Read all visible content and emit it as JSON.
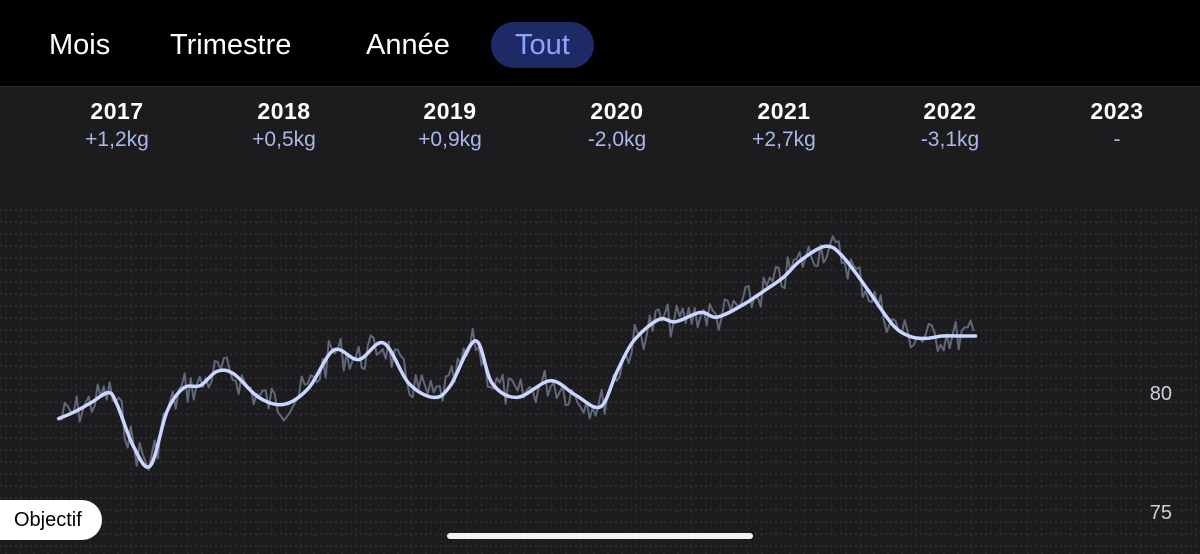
{
  "tabs": [
    {
      "label": "Mois",
      "active": false
    },
    {
      "label": "Trimestre",
      "active": false
    },
    {
      "label": "Année",
      "active": false
    },
    {
      "label": "Tout",
      "active": true
    }
  ],
  "years": [
    {
      "year": "2017",
      "delta": "+1,2kg"
    },
    {
      "year": "2018",
      "delta": "+0,5kg"
    },
    {
      "year": "2019",
      "delta": "+0,9kg"
    },
    {
      "year": "2020",
      "delta": "-2,0kg"
    },
    {
      "year": "2021",
      "delta": "+2,7kg"
    },
    {
      "year": "2022",
      "delta": "-3,1kg"
    },
    {
      "year": "2023",
      "delta": "-"
    }
  ],
  "y_axis": {
    "label_high": "80",
    "label_low": "75"
  },
  "objectif_label": "Objectif",
  "colors": {
    "background": "#1c1c1e",
    "topbar": "#000000",
    "active_tab_bg": "#1e2a66",
    "active_tab_text": "#8ea3ff",
    "delta_text": "#a9b7ea",
    "trend_line": "#c9d6ff",
    "raw_line": "#6d7488"
  },
  "chart_data": {
    "type": "line",
    "ylim": [
      74.5,
      87
    ],
    "yticks": [
      75,
      80
    ],
    "series": [
      {
        "role": "trend",
        "x": [
          2016.65,
          2016.75,
          2016.85,
          2016.95,
          2017.0,
          2017.1,
          2017.2,
          2017.3,
          2017.4,
          2017.5,
          2017.6,
          2017.7,
          2017.85,
          2018.0,
          2018.15,
          2018.3,
          2018.45,
          2018.6,
          2018.75,
          2018.9,
          2019.0,
          2019.15,
          2019.25,
          2019.4,
          2019.6,
          2019.75,
          2019.9,
          2020.0,
          2020.1,
          2020.25,
          2020.35,
          2020.5,
          2020.6,
          2020.75,
          2020.9,
          2021.0,
          2021.1,
          2021.25,
          2021.35,
          2021.5,
          2021.65,
          2021.75,
          2021.85,
          2021.95,
          2022.05,
          2022.15,
          2022.25,
          2022.35,
          2022.45,
          2022.55,
          2022.65
        ],
        "values": [
          79.0,
          79.3,
          79.7,
          80.1,
          79.6,
          77.8,
          77.0,
          79.3,
          80.3,
          80.4,
          81.0,
          80.9,
          79.9,
          79.6,
          80.3,
          81.9,
          81.5,
          82.2,
          80.5,
          79.9,
          80.4,
          82.3,
          80.5,
          79.9,
          80.6,
          80.0,
          79.5,
          81.0,
          82.3,
          83.2,
          83.1,
          83.5,
          83.3,
          83.8,
          84.5,
          85.0,
          85.7,
          86.3,
          85.9,
          84.5,
          83.0,
          82.5,
          82.4,
          82.5,
          82.5,
          82.5,
          82.5,
          82.5,
          82.5,
          82.5,
          82.5
        ]
      }
    ]
  }
}
